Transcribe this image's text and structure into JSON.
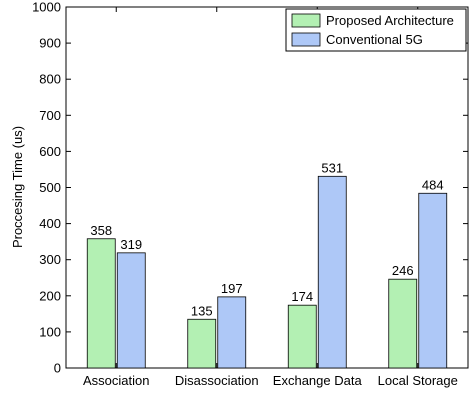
{
  "chart_data": {
    "type": "bar",
    "title": "",
    "xlabel": "",
    "ylabel": "Proccesing Time (us)",
    "ylim": [
      0,
      1000
    ],
    "yticks": [
      0,
      100,
      200,
      300,
      400,
      500,
      600,
      700,
      800,
      900,
      1000
    ],
    "categories": [
      "Association",
      "Disassociation",
      "Exchange Data",
      "Local Storage"
    ],
    "series": [
      {
        "name": "Proposed Architecture",
        "color": "#b3f0b3",
        "values": [
          358,
          135,
          174,
          246
        ]
      },
      {
        "name": "Conventional 5G",
        "color": "#aec8f7",
        "values": [
          319,
          197,
          531,
          484
        ]
      }
    ],
    "legend_position": "top-right",
    "grid": false,
    "data_labels": true
  }
}
